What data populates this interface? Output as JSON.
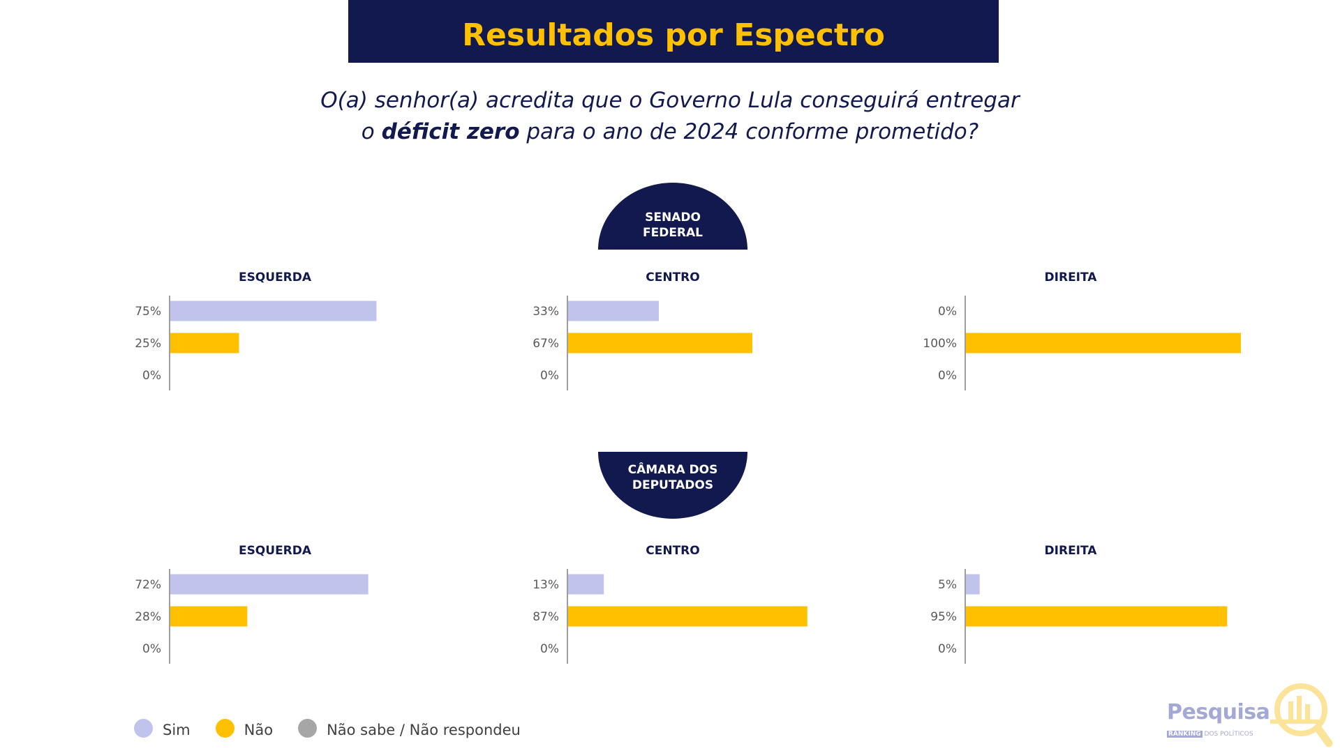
{
  "header": {
    "title": "Resultados por Espectro",
    "question_line1": "O(a) senhor(a) acredita que o Governo Lula conseguirá entregar",
    "question_line2_pre": "o ",
    "question_line2_bold": "déficit zero",
    "question_line2_post": " para o ano de 2024 conforme prometido?"
  },
  "sections": {
    "senado": "SENADO\nFEDERAL",
    "camara": "CÂMARA DOS\nDEPUTADOS"
  },
  "legend": [
    {
      "label": "Sim",
      "color": "#c0c4ec"
    },
    {
      "label": "Não",
      "color": "#ffc000"
    },
    {
      "label": "Não sabe / Não respondeu",
      "color": "#a6a6a6"
    }
  ],
  "colors": {
    "navy": "#11194f",
    "gold": "#ffc000",
    "sim": "#c0c4ec",
    "nao": "#ffc000",
    "ns": "#a6a6a6"
  },
  "logo": {
    "name": "Pesquisa",
    "tagline_a": "RANKING",
    "tagline_b": "DOS POLÍTICOS"
  },
  "chart_data": [
    {
      "type": "bar",
      "orientation": "horizontal",
      "group": "SENADO FEDERAL",
      "title": "ESQUERDA",
      "categories": [
        "Sim",
        "Não",
        "Não sabe / Não respondeu"
      ],
      "values": [
        75,
        25,
        0
      ],
      "labels": [
        "75%",
        "25%",
        "0%"
      ],
      "xlim": [
        0,
        100
      ]
    },
    {
      "type": "bar",
      "orientation": "horizontal",
      "group": "SENADO FEDERAL",
      "title": "CENTRO",
      "categories": [
        "Sim",
        "Não",
        "Não sabe / Não respondeu"
      ],
      "values": [
        33,
        67,
        0
      ],
      "labels": [
        "33%",
        "67%",
        "0%"
      ],
      "xlim": [
        0,
        100
      ]
    },
    {
      "type": "bar",
      "orientation": "horizontal",
      "group": "SENADO FEDERAL",
      "title": "DIREITA",
      "categories": [
        "Sim",
        "Não",
        "Não sabe / Não respondeu"
      ],
      "values": [
        0,
        100,
        0
      ],
      "labels": [
        "0%",
        "100%",
        "0%"
      ],
      "xlim": [
        0,
        100
      ]
    },
    {
      "type": "bar",
      "orientation": "horizontal",
      "group": "CÂMARA DOS DEPUTADOS",
      "title": "ESQUERDA",
      "categories": [
        "Sim",
        "Não",
        "Não sabe / Não respondeu"
      ],
      "values": [
        72,
        28,
        0
      ],
      "labels": [
        "72%",
        "28%",
        "0%"
      ],
      "xlim": [
        0,
        100
      ]
    },
    {
      "type": "bar",
      "orientation": "horizontal",
      "group": "CÂMARA DOS DEPUTADOS",
      "title": "CENTRO",
      "categories": [
        "Sim",
        "Não",
        "Não sabe / Não respondeu"
      ],
      "values": [
        13,
        87,
        0
      ],
      "labels": [
        "13%",
        "87%",
        "0%"
      ],
      "xlim": [
        0,
        100
      ]
    },
    {
      "type": "bar",
      "orientation": "horizontal",
      "group": "CÂMARA DOS DEPUTADOS",
      "title": "DIREITA",
      "categories": [
        "Sim",
        "Não",
        "Não sabe / Não respondeu"
      ],
      "values": [
        5,
        95,
        0
      ],
      "labels": [
        "5%",
        "95%",
        "0%"
      ],
      "xlim": [
        0,
        100
      ]
    }
  ]
}
